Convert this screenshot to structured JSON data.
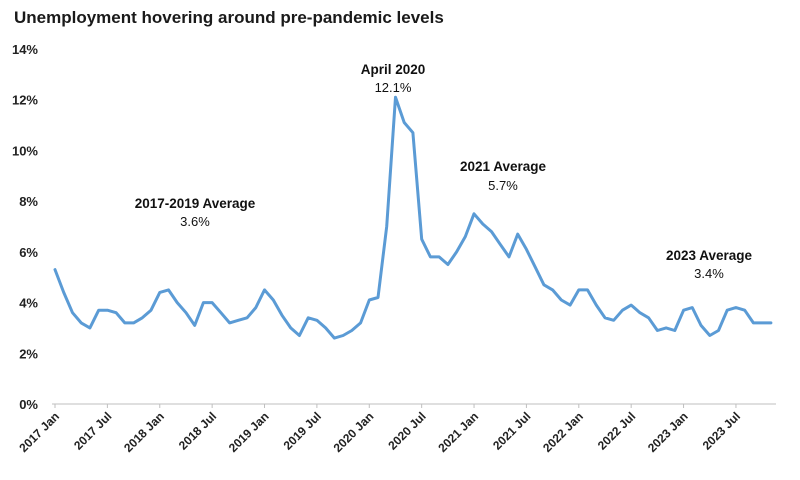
{
  "chart_data": {
    "type": "line",
    "title": "Unemployment hovering around pre-pandemic levels",
    "xlabel": "",
    "ylabel": "",
    "ylim": [
      0,
      14
    ],
    "y_ticks": [
      "0%",
      "2%",
      "4%",
      "6%",
      "8%",
      "10%",
      "12%",
      "14%"
    ],
    "x_tick_labels": [
      "2017 Jan",
      "2017 Jul",
      "2018 Jan",
      "2018 Jul",
      "2019 Jan",
      "2019 Jul",
      "2020 Jan",
      "2020 Jul",
      "2021 Jan",
      "2021 Jul",
      "2022 Jan",
      "2022 Jul",
      "2023 Jan",
      "2023 Jul"
    ],
    "grid": false,
    "line_color": "#5b9bd5",
    "series": [
      {
        "values": [
          5.3,
          4.4,
          3.6,
          3.2,
          3.0,
          3.7,
          3.7,
          3.6,
          3.2,
          3.2,
          3.4,
          3.7,
          4.4,
          4.5,
          4.0,
          3.6,
          3.1,
          4.0,
          4.0,
          3.6,
          3.2,
          3.3,
          3.4,
          3.8,
          4.5,
          4.1,
          3.5,
          3.0,
          2.7,
          3.4,
          3.3,
          3.0,
          2.6,
          2.7,
          2.9,
          3.2,
          4.1,
          4.2,
          7.0,
          12.1,
          11.1,
          10.7,
          6.5,
          5.8,
          5.8,
          5.5,
          6.0,
          6.6,
          7.5,
          7.1,
          6.8,
          6.3,
          5.8,
          6.7,
          6.1,
          5.4,
          4.7,
          4.5,
          4.1,
          3.9,
          4.5,
          4.5,
          3.9,
          3.4,
          3.3,
          3.7,
          3.9,
          3.6,
          3.4,
          2.9,
          3.0,
          2.9,
          3.7,
          3.8,
          3.1,
          2.7,
          2.9,
          3.7,
          3.8,
          3.7,
          3.2,
          3.2,
          3.2
        ]
      }
    ],
    "annotations": [
      {
        "label": "2017-2019 Average",
        "value": "3.6%"
      },
      {
        "label": "April 2020",
        "value": "12.1%"
      },
      {
        "label": "2021 Average",
        "value": "5.7%"
      },
      {
        "label": "2023 Average",
        "value": "3.4%"
      }
    ]
  }
}
